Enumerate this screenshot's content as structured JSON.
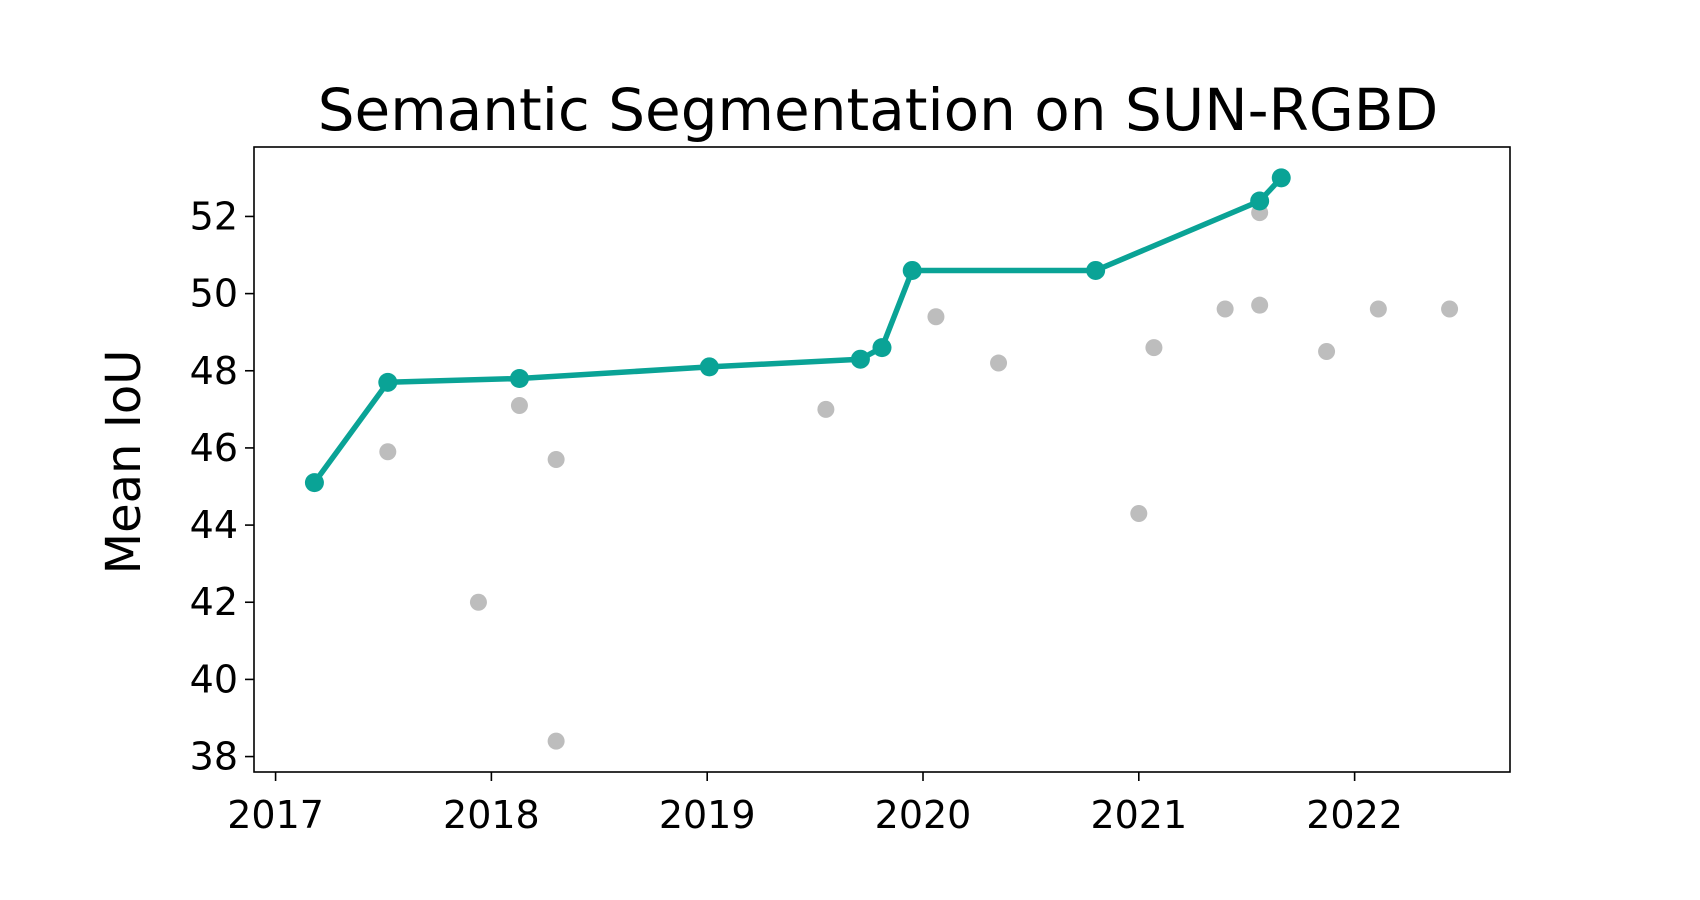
{
  "chart_data": {
    "type": "scatter",
    "title": "Semantic Segmentation on SUN-RGBD",
    "xlabel": "",
    "ylabel": "Mean IoU",
    "xlim": [
      2016.9,
      2022.72
    ],
    "ylim": [
      37.6,
      53.8
    ],
    "xticks": [
      2017,
      2018,
      2019,
      2020,
      2021,
      2022
    ],
    "yticks": [
      38,
      40,
      42,
      44,
      46,
      48,
      50,
      52
    ],
    "grid": false,
    "legend": "none",
    "series": [
      {
        "kind": "line",
        "color": "#0aa396",
        "points": [
          [
            2017.18,
            45.1
          ],
          [
            2017.52,
            47.7
          ],
          [
            2018.13,
            47.8
          ],
          [
            2019.01,
            48.1
          ],
          [
            2019.71,
            48.3
          ],
          [
            2019.81,
            48.6
          ],
          [
            2019.95,
            50.6
          ],
          [
            2020.8,
            50.6
          ],
          [
            2021.56,
            52.4
          ],
          [
            2021.66,
            53.0
          ]
        ]
      },
      {
        "kind": "scatter",
        "color": "#bdbdbd",
        "points": [
          [
            2017.52,
            45.9
          ],
          [
            2017.94,
            42.0
          ],
          [
            2018.13,
            47.1
          ],
          [
            2018.3,
            45.7
          ],
          [
            2018.3,
            38.4
          ],
          [
            2019.55,
            47.0
          ],
          [
            2020.06,
            49.4
          ],
          [
            2020.35,
            48.2
          ],
          [
            2021.0,
            44.3
          ],
          [
            2021.07,
            48.6
          ],
          [
            2021.4,
            49.6
          ],
          [
            2021.56,
            52.1
          ],
          [
            2021.56,
            49.7
          ],
          [
            2021.87,
            48.5
          ],
          [
            2022.11,
            49.6
          ],
          [
            2022.44,
            49.6
          ]
        ]
      }
    ]
  }
}
